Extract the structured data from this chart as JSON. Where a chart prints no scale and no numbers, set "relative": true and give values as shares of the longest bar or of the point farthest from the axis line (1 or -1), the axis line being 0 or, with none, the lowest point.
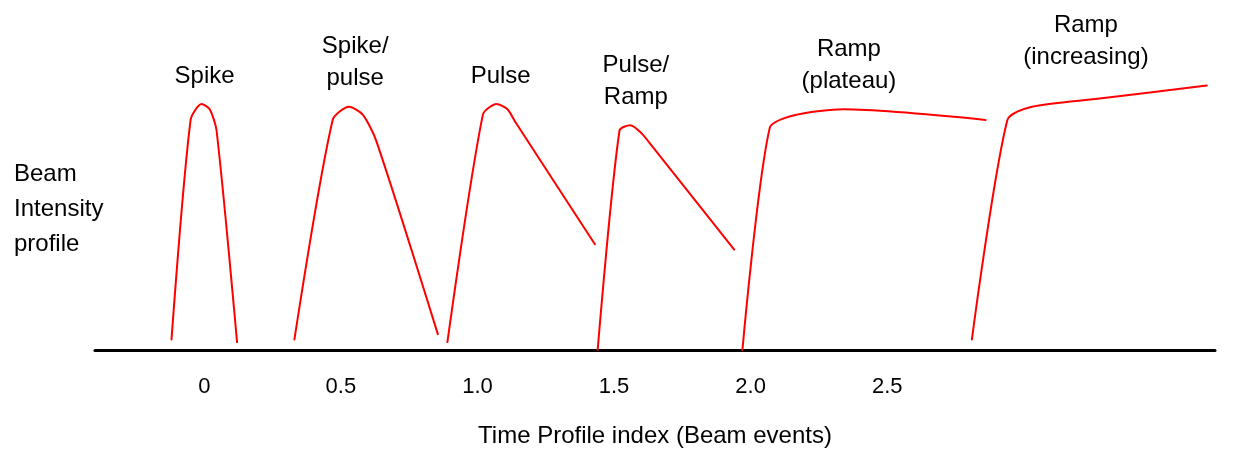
{
  "chart_data": {
    "type": "line",
    "relative": true,
    "xlabel": "Time Profile index (Beam events)",
    "ylabel": "Beam\nIntensity\nprofile",
    "xlim": [
      -0.4,
      3.7
    ],
    "xticks": [
      0,
      0.5,
      {
        "value": 1,
        "label": "1.0"
      },
      1.5,
      {
        "value": 2,
        "label": "2.0"
      },
      2.5
    ],
    "grid": false,
    "marker": "none",
    "line_style": "solid",
    "series": [
      {
        "name": "Spike",
        "color": "#ff0000",
        "x": [
          -0.12,
          -0.05,
          -0.01,
          0.02,
          0.045,
          0.12
        ],
        "values": [
          0.04,
          0.87,
          0.93,
          0.91,
          0.83,
          0.03
        ]
      },
      {
        "name": "Spike/\npulse",
        "color": "#ff0000",
        "x": [
          0.33,
          0.47,
          0.53,
          0.58,
          0.63,
          0.855
        ],
        "values": [
          0.04,
          0.87,
          0.92,
          0.89,
          0.79,
          0.06
        ]
      },
      {
        "name": "Pulse",
        "color": "#ff0000",
        "x": [
          0.89,
          1.02,
          1.07,
          1.11,
          1.14,
          1.43
        ],
        "values": [
          0.03,
          0.89,
          0.93,
          0.91,
          0.86,
          0.4
        ]
      },
      {
        "name": "Pulse/\nRamp",
        "color": "#ff0000",
        "x": [
          1.44,
          1.52,
          1.56,
          1.6,
          1.64,
          1.94
        ],
        "values": [
          0,
          0.83,
          0.85,
          0.82,
          0.77,
          0.38
        ]
      },
      {
        "name": "Ramp\n(plateau)",
        "color": "#ff0000",
        "x": [
          1.97,
          2.07,
          2.17,
          2.34,
          2.86
        ],
        "values": [
          0,
          0.84,
          0.89,
          0.91,
          0.87
        ]
      },
      {
        "name": "Ramp\n(increasing)",
        "color": "#ff0000",
        "x": [
          2.81,
          2.94,
          3.03,
          3.27,
          3.67
        ],
        "values": [
          0.04,
          0.87,
          0.92,
          0.95,
          1
        ]
      }
    ]
  }
}
